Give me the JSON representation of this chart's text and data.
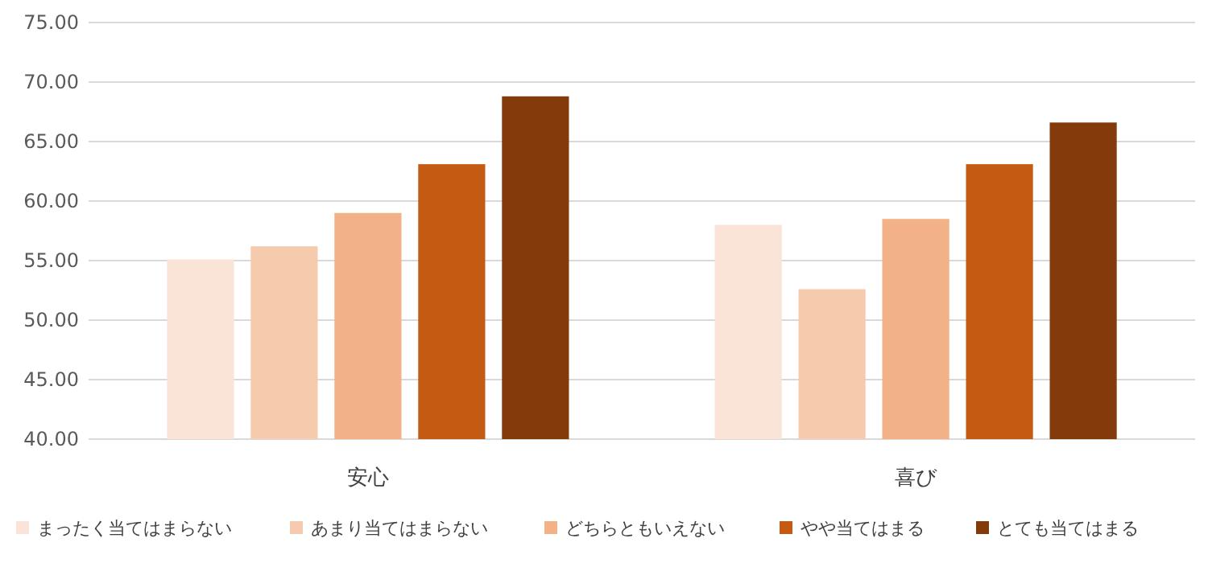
{
  "chart_data": {
    "type": "bar",
    "categories": [
      "安心",
      "喜び"
    ],
    "series": [
      {
        "name": "まったく当てはまらない",
        "color": "#f9e4d7",
        "values": [
          55.1,
          58.0
        ]
      },
      {
        "name": "あまり当てはまらない",
        "color": "#f6cbad",
        "values": [
          56.2,
          52.6
        ]
      },
      {
        "name": "どちらともいえない",
        "color": "#f2b187",
        "values": [
          59.0,
          58.5
        ]
      },
      {
        "name": "やや当てはまる",
        "color": "#c45b12",
        "values": [
          63.1,
          63.1
        ]
      },
      {
        "name": "とても当てはまる",
        "color": "#843b0c",
        "values": [
          68.8,
          66.6
        ]
      }
    ],
    "ylim": [
      40,
      75
    ],
    "yticks": [
      {
        "value": 40,
        "label": "40.00"
      },
      {
        "value": 45,
        "label": "45.00"
      },
      {
        "value": 50,
        "label": "50.00"
      },
      {
        "value": 55,
        "label": "55.00"
      },
      {
        "value": 60,
        "label": "60.00"
      },
      {
        "value": 65,
        "label": "65.00"
      },
      {
        "value": 70,
        "label": "70.00"
      },
      {
        "value": 75,
        "label": "75.00"
      }
    ],
    "grid": "y",
    "legend": "bottom"
  }
}
